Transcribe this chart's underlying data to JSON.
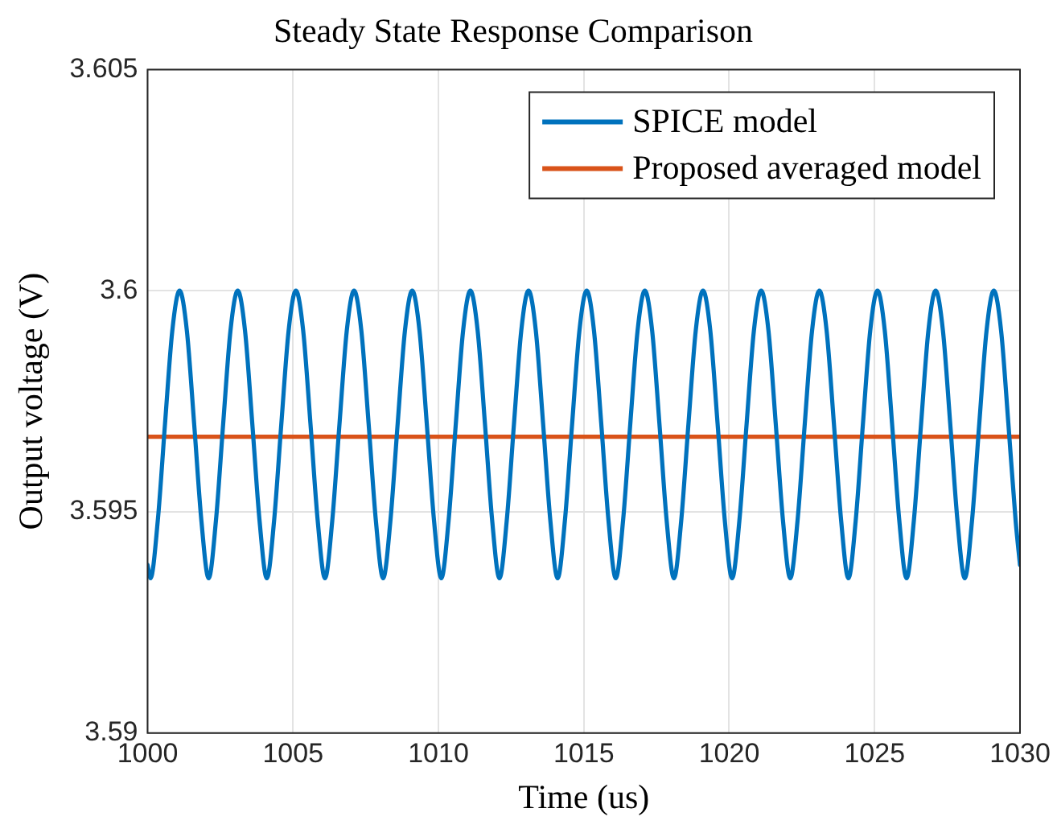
{
  "chart_data": {
    "type": "line",
    "title": "Steady State Response Comparison",
    "xlabel": "Time (us)",
    "ylabel": "Output voltage (V)",
    "xlim": [
      1000,
      1030
    ],
    "xticks": [
      1000,
      1005,
      1010,
      1015,
      1020,
      1025,
      1030
    ],
    "ylim": [
      3.59,
      3.605
    ],
    "yticks": [
      3.59,
      3.595,
      3.6,
      3.605
    ],
    "grid": true,
    "legend": "top right",
    "marker": "none",
    "line_style": "solid",
    "series": [
      {
        "name": "SPICE model",
        "color": "#0072bd",
        "x": [
          1000,
          1000.1,
          1000.35,
          1000.6,
          1000.85,
          1001.1,
          1001.35,
          1001.6,
          1001.85,
          1002.1,
          1002.35,
          1002.6,
          1002.85,
          1003.1,
          1003.35,
          1003.6,
          1003.85,
          1004.1,
          1004.35,
          1004.6,
          1004.85,
          1005.1,
          1005.35,
          1005.6,
          1005.85,
          1006.1,
          1006.35,
          1006.6,
          1006.85,
          1007.1,
          1007.35,
          1007.6,
          1007.85,
          1008.1,
          1008.35,
          1008.6,
          1008.85,
          1009.1,
          1009.35,
          1009.6,
          1009.85,
          1010.1,
          1010.35,
          1010.6,
          1010.85,
          1011.1,
          1011.35,
          1011.6,
          1011.85,
          1012.1,
          1012.35,
          1012.6,
          1012.85,
          1013.1,
          1013.35,
          1013.6,
          1013.85,
          1014.1,
          1014.35,
          1014.6,
          1014.85,
          1015.1,
          1015.35,
          1015.6,
          1015.85,
          1016.1,
          1016.35,
          1016.6,
          1016.85,
          1017.1,
          1017.35,
          1017.6,
          1017.85,
          1018.1,
          1018.35,
          1018.6,
          1018.85,
          1019.1,
          1019.35,
          1019.6,
          1019.85,
          1020.1,
          1020.35,
          1020.6,
          1020.85,
          1021.1,
          1021.35,
          1021.6,
          1021.85,
          1022.1,
          1022.35,
          1022.6,
          1022.85,
          1023.1,
          1023.35,
          1023.6,
          1023.85,
          1024.1,
          1024.35,
          1024.6,
          1024.85,
          1025.1,
          1025.35,
          1025.6,
          1025.85,
          1026.1,
          1026.35,
          1026.6,
          1026.85,
          1027.1,
          1027.35,
          1027.6,
          1027.85,
          1028.1,
          1028.35,
          1028.6,
          1028.85,
          1029.1,
          1029.35,
          1029.6,
          1029.85,
          1030
        ],
        "values": [
          3.5938,
          3.5935,
          3.5948,
          3.597,
          3.5991,
          3.6,
          3.5991,
          3.597,
          3.5948,
          3.5935,
          3.5948,
          3.597,
          3.5991,
          3.6,
          3.5991,
          3.597,
          3.5948,
          3.5935,
          3.5948,
          3.597,
          3.5991,
          3.6,
          3.5991,
          3.597,
          3.5948,
          3.5935,
          3.5948,
          3.597,
          3.5991,
          3.6,
          3.5991,
          3.597,
          3.5948,
          3.5935,
          3.5948,
          3.597,
          3.5991,
          3.6,
          3.5991,
          3.597,
          3.5948,
          3.5935,
          3.5948,
          3.597,
          3.5991,
          3.6,
          3.5991,
          3.597,
          3.5948,
          3.5935,
          3.5948,
          3.597,
          3.5991,
          3.6,
          3.5991,
          3.597,
          3.5948,
          3.5935,
          3.5948,
          3.597,
          3.5991,
          3.6,
          3.5991,
          3.597,
          3.5948,
          3.5935,
          3.5948,
          3.597,
          3.5991,
          3.6,
          3.5991,
          3.597,
          3.5948,
          3.5935,
          3.5948,
          3.597,
          3.5991,
          3.6,
          3.5991,
          3.597,
          3.5948,
          3.5935,
          3.5948,
          3.597,
          3.5991,
          3.6,
          3.5991,
          3.597,
          3.5948,
          3.5935,
          3.5948,
          3.597,
          3.5991,
          3.6,
          3.5991,
          3.597,
          3.5948,
          3.5935,
          3.5948,
          3.597,
          3.5991,
          3.6,
          3.5991,
          3.597,
          3.5948,
          3.5935,
          3.5948,
          3.597,
          3.5991,
          3.6,
          3.5991,
          3.597,
          3.5948,
          3.5935,
          3.5948,
          3.597,
          3.5991,
          3.6,
          3.5991,
          3.597,
          3.5948,
          3.5938
        ]
      },
      {
        "name": "Proposed averaged model",
        "color": "#d95319",
        "x": [
          1000,
          1030
        ],
        "values": [
          3.5967,
          3.5967
        ]
      }
    ]
  }
}
